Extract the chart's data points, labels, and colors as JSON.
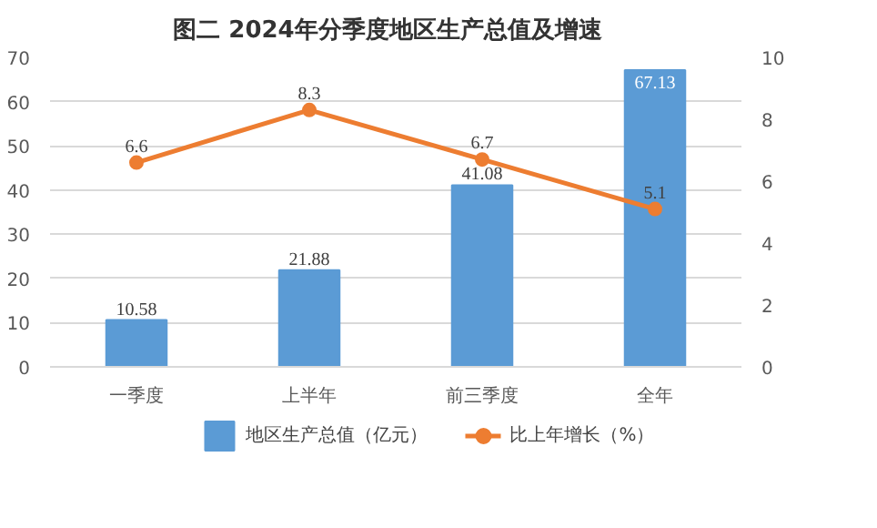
{
  "chart_data": {
    "type": "bar",
    "title": "图二   2024年分季度地区生产总值及增速",
    "categories": [
      "一季度",
      "上半年",
      "前三季度",
      "全年"
    ],
    "series": [
      {
        "name": "地区生产总值（亿元）",
        "color": "#5b9bd5",
        "values": [
          10.58,
          21.88,
          41.08,
          67.13
        ]
      },
      {
        "name": "比上年增长（%）",
        "type": "line",
        "axis": "y2",
        "color": "#ed7d31",
        "values": [
          6.6,
          8.3,
          6.7,
          5.1
        ],
        "marker": "circle"
      }
    ],
    "ylim": [
      0,
      70
    ],
    "yticks": [
      0,
      10,
      20,
      30,
      40,
      50,
      60,
      70
    ],
    "y2lim": [
      0,
      10
    ],
    "y2ticks": [
      0,
      2,
      4,
      6,
      8,
      10
    ],
    "grid": "y",
    "legend": "bottom",
    "data_labels": true
  }
}
